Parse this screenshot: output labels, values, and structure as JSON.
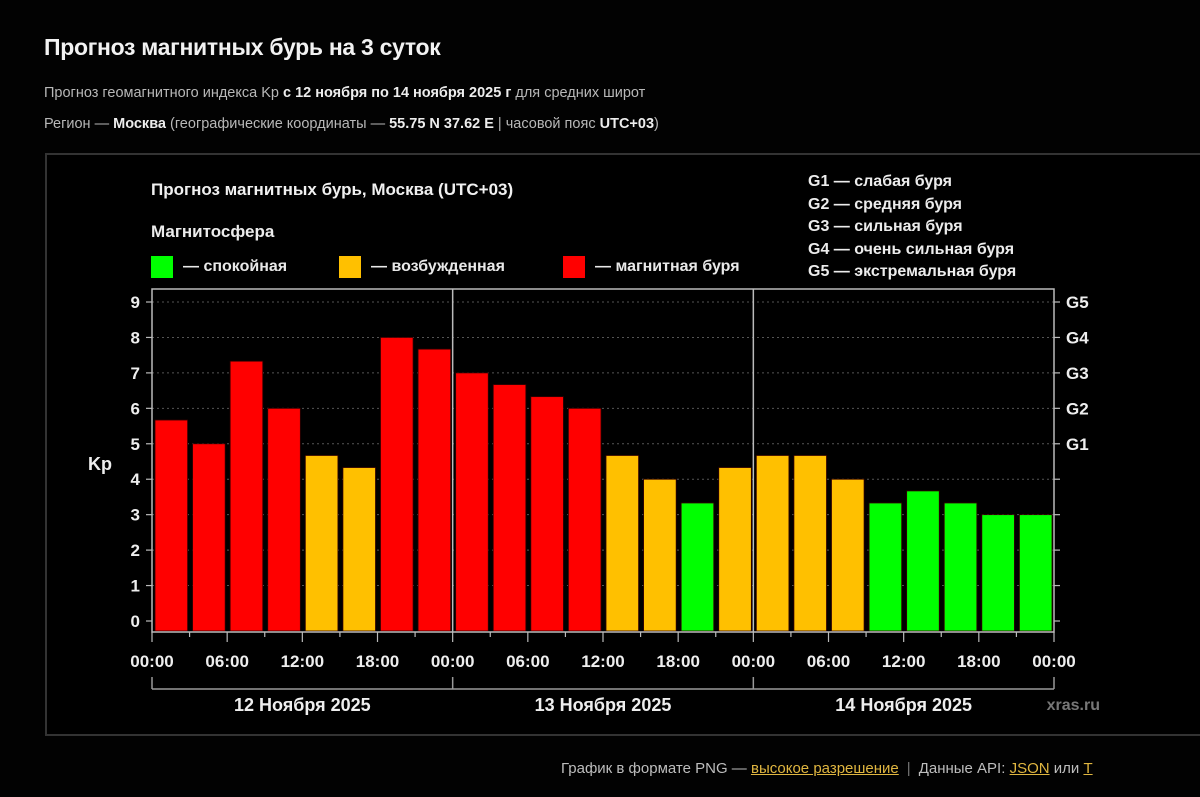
{
  "header": {
    "title": "Прогноз магнитных бурь на 3 суток",
    "line1_pre": "Прогноз геомагнитного индекса Kp ",
    "line1_bold": "с 12 ноября по 14 ноября 2025 г",
    "line1_post": " для средних широт",
    "line2_pre": "Регион — ",
    "line2_region": "Москва",
    "line2_mid": " (географические координаты — ",
    "line2_coords": "55.75 N 37.62 E",
    "line2_mid2": " | часовой пояс ",
    "line2_tz": "UTC+03",
    "line2_post": ")"
  },
  "legend": {
    "title": "Магнитосфера",
    "items": [
      {
        "label": "— спокойная",
        "color": "#00ff00"
      },
      {
        "label": "— возбужденная",
        "color": "#ffc000"
      },
      {
        "label": "— магнитная буря",
        "color": "#ff0000"
      }
    ],
    "g_scale": [
      "G1 — слабая буря",
      "G2 — средняя буря",
      "G3 — сильная буря",
      "G4 — очень сильная буря",
      "G5 — экстремальная буря"
    ]
  },
  "chart_data": {
    "type": "bar",
    "title": "Прогноз магнитных бурь, Москва (UTC+03)",
    "ylabel": "Kp",
    "ylim": [
      0,
      9.3
    ],
    "yticks": [
      "0",
      "1",
      "2",
      "3",
      "4",
      "5",
      "6",
      "7",
      "8",
      "9"
    ],
    "right_ticks": [
      {
        "value": 5,
        "label": "G1"
      },
      {
        "value": 6,
        "label": "G2"
      },
      {
        "value": 7,
        "label": "G3"
      },
      {
        "value": 8,
        "label": "G4"
      },
      {
        "value": 9,
        "label": "G5"
      }
    ],
    "grid": true,
    "xtick_labels": [
      "00:00",
      "06:00",
      "12:00",
      "18:00",
      "00:00",
      "06:00",
      "12:00",
      "18:00",
      "00:00",
      "06:00",
      "12:00",
      "18:00",
      "00:00"
    ],
    "days": [
      "12 Ноября 2025",
      "13 Ноября 2025",
      "14 Ноября 2025"
    ],
    "interval_hours": 3,
    "values": [
      5.67,
      5.0,
      7.33,
      6.0,
      4.67,
      4.33,
      8.0,
      7.67,
      7.0,
      6.67,
      6.33,
      6.0,
      4.67,
      4.0,
      3.33,
      4.33,
      4.67,
      4.67,
      4.0,
      3.33,
      3.67,
      3.33,
      3.0,
      3.0
    ],
    "levels": [
      "storm",
      "storm",
      "storm",
      "storm",
      "excited",
      "excited",
      "storm",
      "storm",
      "storm",
      "storm",
      "storm",
      "storm",
      "excited",
      "excited",
      "calm",
      "excited",
      "excited",
      "excited",
      "excited",
      "calm",
      "calm",
      "calm",
      "calm",
      "calm"
    ],
    "level_colors": {
      "calm": "#00ff00",
      "excited": "#ffc000",
      "storm": "#ff0000"
    },
    "watermark": "xras.ru"
  },
  "footer": {
    "png_text": "График в формате PNG — ",
    "png_link": "высокое разрешение",
    "sep": "|",
    "api_text": "Данные API: ",
    "json_link": "JSON",
    "or_text": " или ",
    "trunc_link": "T"
  }
}
